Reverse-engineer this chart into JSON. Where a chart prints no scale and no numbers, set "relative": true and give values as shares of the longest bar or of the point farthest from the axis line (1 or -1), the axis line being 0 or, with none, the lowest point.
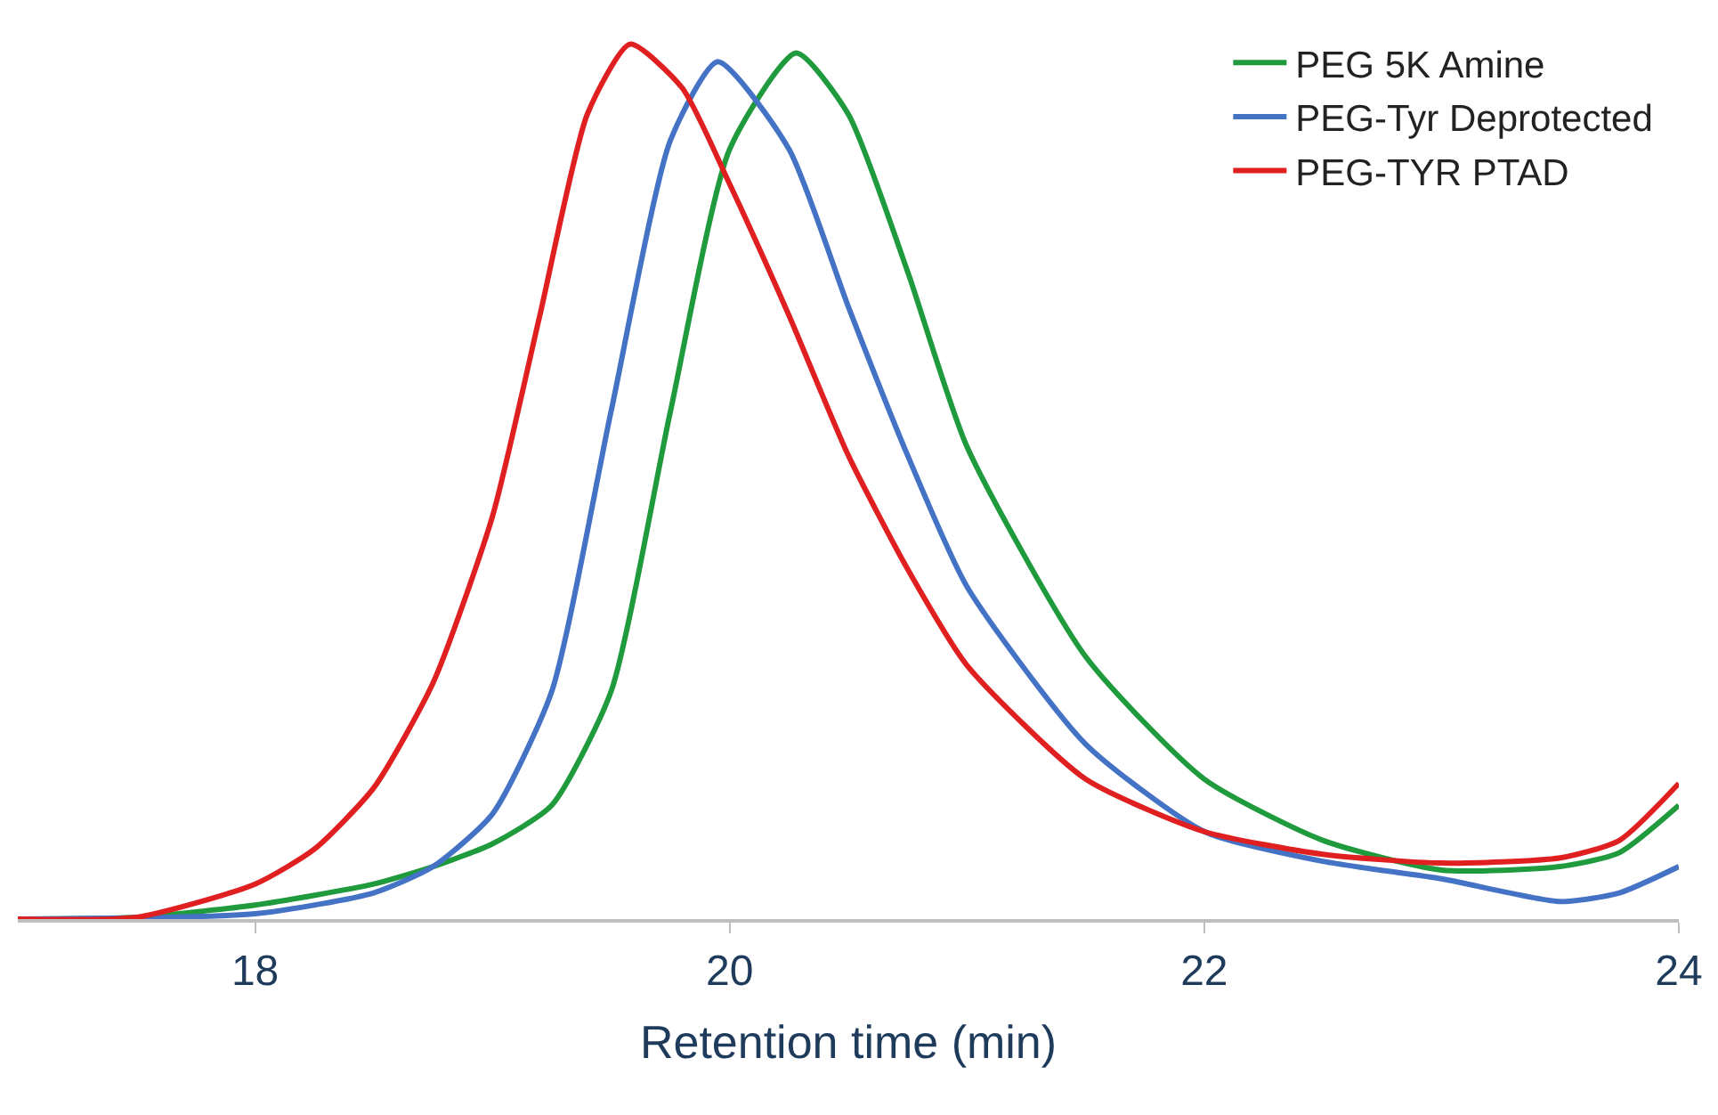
{
  "chart_data": {
    "type": "line",
    "relative": true,
    "xlabel": "Retention time (min)",
    "xlim": [
      17,
      24
    ],
    "xticks": [
      18,
      20,
      22,
      24
    ],
    "legend": "top right",
    "grid": false,
    "marker": "none",
    "line_style": "solid",
    "series": [
      {
        "name": "PEG 5K Amine",
        "color": "#1f9a3c",
        "x": [
          17,
          17.5,
          18,
          18.5,
          18.75,
          19,
          19.25,
          19.5,
          19.75,
          20,
          20.28,
          20.5,
          20.75,
          21,
          21.5,
          22,
          22.5,
          23,
          23.5,
          23.75,
          24
        ],
        "values": [
          0,
          0.002,
          0.016,
          0.04,
          0.06,
          0.086,
          0.13,
          0.26,
          0.58,
          0.88,
          0.99,
          0.92,
          0.74,
          0.54,
          0.3,
          0.16,
          0.09,
          0.056,
          0.06,
          0.076,
          0.13
        ]
      },
      {
        "name": "PEG-Tyr Deprotected",
        "color": "#4472c4",
        "x": [
          17,
          18,
          18.5,
          18.75,
          19,
          19.25,
          19.5,
          19.75,
          19.95,
          20.25,
          20.5,
          20.75,
          21,
          21.5,
          22,
          22.5,
          23,
          23.5,
          23.75,
          24
        ],
        "values": [
          0,
          0.006,
          0.03,
          0.06,
          0.12,
          0.26,
          0.58,
          0.89,
          0.98,
          0.88,
          0.7,
          0.53,
          0.38,
          0.2,
          0.1,
          0.066,
          0.046,
          0.02,
          0.03,
          0.06
        ]
      },
      {
        "name": "PEG-TYR PTAD",
        "color": "#e02020",
        "x": [
          17,
          17.5,
          18,
          18.25,
          18.5,
          18.75,
          19,
          19.2,
          19.4,
          19.58,
          19.8,
          20,
          20.25,
          20.5,
          20.75,
          21,
          21.5,
          22,
          22.5,
          23,
          23.5,
          23.75,
          24
        ],
        "values": [
          0,
          0.002,
          0.04,
          0.08,
          0.15,
          0.27,
          0.46,
          0.69,
          0.92,
          1,
          0.95,
          0.84,
          0.69,
          0.53,
          0.4,
          0.29,
          0.16,
          0.1,
          0.074,
          0.064,
          0.07,
          0.09,
          0.155
        ]
      }
    ]
  }
}
